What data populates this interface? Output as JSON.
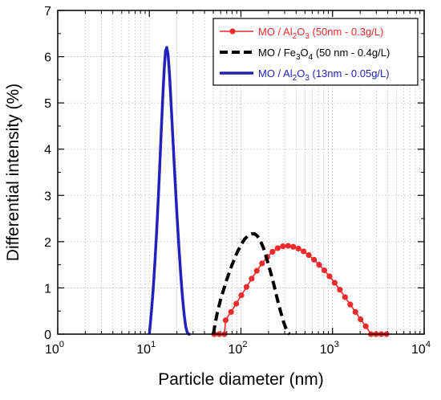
{
  "chart_data": {
    "type": "line",
    "xlabel": "Particle diameter (nm)",
    "ylabel": "Differential intensity (%)",
    "x_scale": "log",
    "xlim": [
      1,
      10000
    ],
    "ylim": [
      0,
      7
    ],
    "grid": true,
    "legend_position": "top-right",
    "x_ticks": [
      {
        "value": 1,
        "base": "10",
        "exp": "0"
      },
      {
        "value": 10,
        "base": "10",
        "exp": "1"
      },
      {
        "value": 100,
        "base": "10",
        "exp": "2"
      },
      {
        "value": 1000,
        "base": "10",
        "exp": "3"
      },
      {
        "value": 10000,
        "base": "10",
        "exp": "4"
      }
    ],
    "y_ticks": [
      "0",
      "1",
      "2",
      "3",
      "4",
      "5",
      "6",
      "7"
    ],
    "series": [
      {
        "name": "MO / Al2O3 (50nm - 0.3g/L)",
        "legend": [
          {
            "t": "MO / Al",
            "sub": false
          },
          {
            "t": "2",
            "sub": true
          },
          {
            "t": "O",
            "sub": false
          },
          {
            "t": "3",
            "sub": true
          },
          {
            "t": " (50nm - 0.3g/L)",
            "sub": false
          }
        ],
        "color": "#ee2a2a",
        "style": "solid-marker",
        "x": [
          51,
          58,
          66,
          68,
          78,
          89,
          101,
          115,
          131,
          149,
          170,
          194,
          221,
          252,
          287,
          327,
          372,
          424,
          483,
          550,
          627,
          714,
          813,
          926,
          1055,
          1202,
          1369,
          1559,
          1776,
          2023,
          2304,
          2625,
          2990,
          3406,
          3880
        ],
        "y": [
          0,
          0,
          0,
          0.3,
          0.48,
          0.66,
          0.84,
          1.02,
          1.2,
          1.37,
          1.53,
          1.67,
          1.78,
          1.86,
          1.9,
          1.91,
          1.89,
          1.85,
          1.79,
          1.71,
          1.61,
          1.5,
          1.38,
          1.25,
          1.11,
          0.96,
          0.8,
          0.64,
          0.48,
          0.32,
          0.17,
          0,
          0,
          0,
          0
        ]
      },
      {
        "name": "MO / Fe3O4 (50 nm - 0.4g/L)",
        "legend": [
          {
            "t": "MO / Fe",
            "sub": false
          },
          {
            "t": "3",
            "sub": true
          },
          {
            "t": "O",
            "sub": false
          },
          {
            "t": "4",
            "sub": true
          },
          {
            "t": " (50 nm - 0.4g/L)",
            "sub": false
          }
        ],
        "color": "#000000",
        "style": "dashed",
        "x": [
          50,
          52,
          55,
          60,
          70,
          80,
          90,
          100,
          110,
          120,
          130,
          140,
          150,
          160,
          175,
          190,
          210,
          230,
          250,
          270,
          290,
          310,
          330,
          340
        ],
        "y": [
          0,
          0.2,
          0.45,
          0.75,
          1.18,
          1.5,
          1.75,
          1.93,
          2.06,
          2.13,
          2.17,
          2.17,
          2.13,
          2.05,
          1.88,
          1.65,
          1.35,
          1.05,
          0.75,
          0.5,
          0.28,
          0.12,
          0.02,
          0
        ]
      },
      {
        "name": "MO / Al2O3 (13nm - 0.05g/L)",
        "legend": [
          {
            "t": "MO / Al",
            "sub": false
          },
          {
            "t": "2",
            "sub": true
          },
          {
            "t": "O",
            "sub": false
          },
          {
            "t": "3",
            "sub": true
          },
          {
            "t": " (13nm - 0.05g/L)",
            "sub": false
          }
        ],
        "color": "#2222bb",
        "style": "solid-thick",
        "x": [
          10,
          10.5,
          11,
          11.5,
          12,
          12.5,
          13,
          13.5,
          14,
          14.5,
          15,
          15.5,
          16,
          16.5,
          17,
          18,
          19,
          20,
          21,
          22,
          23,
          24,
          25,
          26,
          27,
          28
        ],
        "y": [
          0,
          0.45,
          0.95,
          1.55,
          2.2,
          2.9,
          3.65,
          4.4,
          5.1,
          5.7,
          6.12,
          6.2,
          6.05,
          5.7,
          5.25,
          4.3,
          3.4,
          2.6,
          1.9,
          1.3,
          0.8,
          0.42,
          0.15,
          0.03,
          0,
          0
        ]
      }
    ]
  }
}
